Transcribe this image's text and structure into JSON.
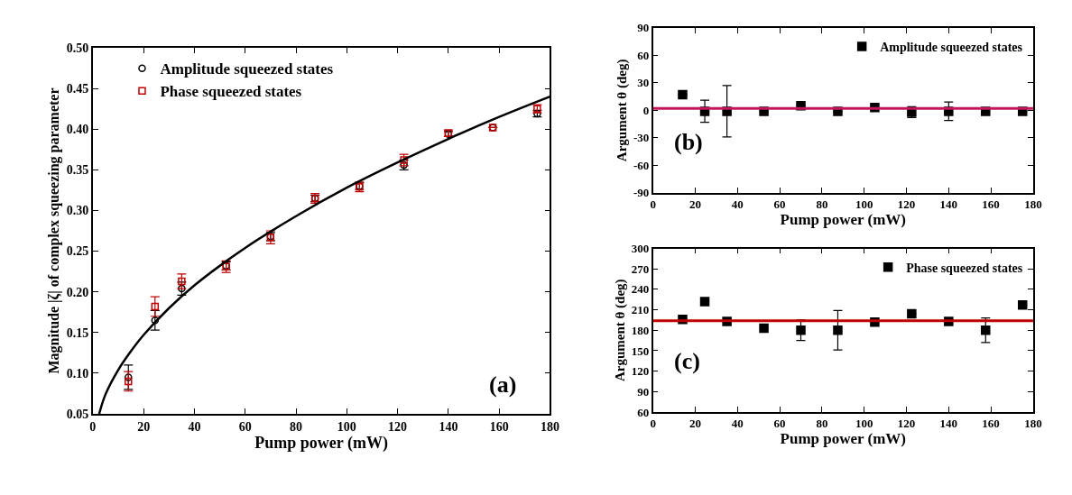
{
  "chart_data": [
    {
      "type": "scatter",
      "xlabel": "Pump power (mW)",
      "ylabel": "Magnitude |ζ| of complex squeezing parameter",
      "annotations": [
        "(a)"
      ],
      "legend": "top left",
      "xlim": [
        0,
        180
      ],
      "xticks": [
        0,
        20,
        40,
        60,
        80,
        100,
        120,
        140,
        160,
        180
      ],
      "ylim": [
        0.05,
        0.5
      ],
      "yticks": [
        {
          "value": 0.05,
          "label": "0.05"
        },
        {
          "value": 0.1,
          "label": "0.10"
        },
        {
          "value": 0.15,
          "label": "0.15"
        },
        {
          "value": 0.2,
          "label": "0.20"
        },
        {
          "value": 0.25,
          "label": "0.25"
        },
        {
          "value": 0.3,
          "label": "0.30"
        },
        {
          "value": 0.35,
          "label": "0.35"
        },
        {
          "value": 0.4,
          "label": "0.40"
        },
        {
          "value": 0.45,
          "label": "0.45"
        },
        {
          "value": 0.5,
          "label": "0.50"
        }
      ],
      "x": [
        14,
        24.5,
        35,
        52.5,
        70,
        87.5,
        105,
        122.5,
        140,
        157.5,
        175
      ],
      "series": [
        {
          "name": "Amplitude squeezed states",
          "color": "#000000",
          "marker": "circle",
          "values": [
            0.095,
            0.165,
            0.204,
            0.232,
            0.268,
            0.315,
            0.33,
            0.356,
            0.394,
            0.402,
            0.419
          ],
          "errors": [
            0.015,
            0.012,
            0.008,
            0.005,
            0.005,
            0.004,
            0.004,
            0.006,
            0.003,
            null,
            0.004
          ]
        },
        {
          "name": "Phase squeezed states",
          "color": "#c00000",
          "marker": "square",
          "values": [
            0.09,
            0.182,
            0.213,
            0.231,
            0.267,
            0.315,
            0.329,
            0.362,
            0.395,
            0.402,
            0.425
          ],
          "errors": [
            0.012,
            0.012,
            0.009,
            0.007,
            0.008,
            0.006,
            0.006,
            0.007,
            0.004,
            null,
            0.005
          ]
        },
        {
          "type": "line",
          "color": "#000000",
          "marker": "none",
          "x": [
            2.5,
            5,
            10,
            15,
            20,
            30,
            40,
            60,
            80,
            100,
            120,
            140,
            160,
            180
          ],
          "values": [
            0.05,
            0.074,
            0.104,
            0.127,
            0.147,
            0.18,
            0.208,
            0.254,
            0.293,
            0.328,
            0.359,
            0.388,
            0.415,
            0.44
          ]
        }
      ]
    },
    {
      "type": "scatter",
      "xlabel": "Pump power (mW)",
      "ylabel": "Argument θ (deg)",
      "annotations": [
        "(b)"
      ],
      "legend": "top right",
      "xlim": [
        0,
        180
      ],
      "xticks": [
        0,
        20,
        40,
        60,
        80,
        100,
        120,
        140,
        160,
        180
      ],
      "ylim": [
        -90,
        90
      ],
      "yticks": [
        -90,
        -60,
        -30,
        0,
        30,
        60,
        90
      ],
      "x": [
        14,
        24.5,
        35,
        52.5,
        70,
        87.5,
        105,
        122.5,
        140,
        157.5,
        175
      ],
      "series": [
        {
          "name": "Amplitude squeezed states",
          "color": "#000000",
          "marker": "square",
          "values": [
            17,
            -1,
            -1,
            -1,
            5,
            -1,
            3,
            -2,
            -1,
            -1,
            -1
          ],
          "errors": [
            null,
            12,
            28,
            null,
            null,
            null,
            null,
            6,
            10,
            null,
            null
          ]
        }
      ],
      "ref_lines": [
        {
          "axis": "y",
          "value": 2,
          "color": "#c2185b"
        }
      ]
    },
    {
      "type": "scatter",
      "xlabel": "Pump power (mW)",
      "ylabel": "Argument θ (deg)",
      "annotations": [
        "(c)"
      ],
      "legend": "top right",
      "xlim": [
        0,
        180
      ],
      "xticks": [
        0,
        20,
        40,
        60,
        80,
        100,
        120,
        140,
        160,
        180
      ],
      "ylim": [
        60,
        300
      ],
      "yticks": [
        60,
        90,
        120,
        150,
        180,
        210,
        240,
        270,
        300
      ],
      "x": [
        14,
        24.5,
        35,
        52.5,
        70,
        87.5,
        105,
        122.5,
        140,
        157.5,
        175
      ],
      "series": [
        {
          "name": "Phase squeezed states",
          "color": "#000000",
          "marker": "square",
          "values": [
            196,
            222,
            193,
            183,
            180,
            180,
            192,
            204,
            193,
            180,
            217
          ],
          "errors": [
            null,
            null,
            null,
            null,
            15,
            29,
            null,
            null,
            null,
            18,
            null
          ]
        }
      ],
      "ref_lines": [
        {
          "axis": "y",
          "value": 194,
          "color": "#c00000"
        }
      ]
    }
  ]
}
